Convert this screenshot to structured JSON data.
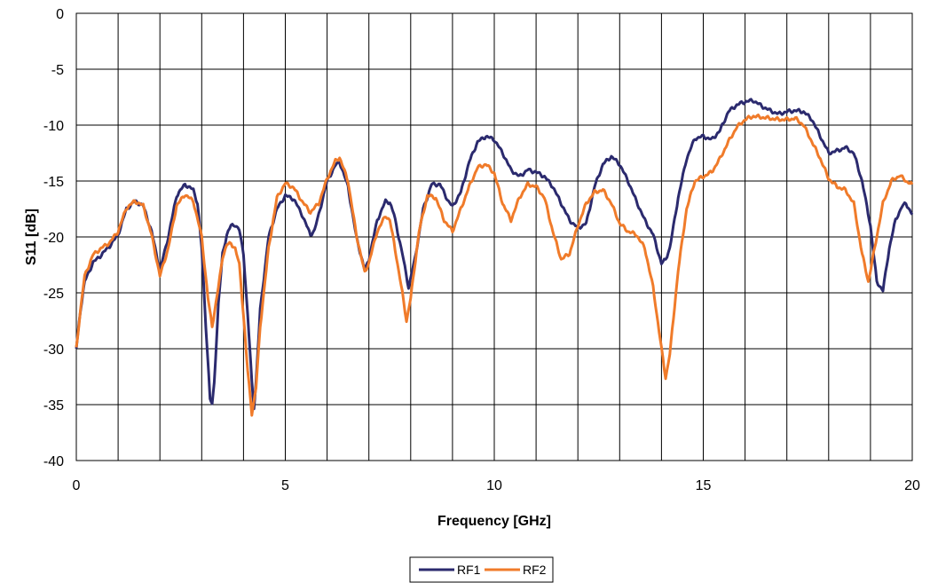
{
  "chart_data": {
    "type": "line",
    "title": "",
    "xlabel": "Frequency [GHz]",
    "ylabel": "S11 [dB]",
    "xlim": [
      0,
      20
    ],
    "ylim": [
      -40,
      0
    ],
    "x_ticks": [
      0,
      5,
      10,
      15,
      20
    ],
    "x_tick_labels": [
      "0",
      "5",
      "10",
      "15",
      "20"
    ],
    "y_ticks": [
      0,
      -5,
      -10,
      -15,
      -20,
      -25,
      -30,
      -35,
      -40
    ],
    "y_tick_labels": [
      "0",
      "-5",
      "-10",
      "-15",
      "-20",
      "-25",
      "-30",
      "-35",
      "-40"
    ],
    "x_minor_gridlines": [
      1,
      2,
      3,
      4,
      6,
      7,
      8,
      9,
      11,
      12,
      13,
      14,
      16,
      17,
      18,
      19
    ],
    "grid": true,
    "legend_position": "bottom-center",
    "series": [
      {
        "name": "RF1",
        "color": "#2b2a6e",
        "points": [
          [
            0.0,
            -30.0
          ],
          [
            0.1,
            -26.5
          ],
          [
            0.2,
            -24.0
          ],
          [
            0.4,
            -22.3
          ],
          [
            0.6,
            -21.6
          ],
          [
            0.8,
            -20.8
          ],
          [
            1.0,
            -19.8
          ],
          [
            1.2,
            -17.5
          ],
          [
            1.4,
            -16.8
          ],
          [
            1.6,
            -17.2
          ],
          [
            1.8,
            -19.5
          ],
          [
            2.0,
            -23.0
          ],
          [
            2.2,
            -20.0
          ],
          [
            2.4,
            -16.3
          ],
          [
            2.6,
            -15.3
          ],
          [
            2.8,
            -15.8
          ],
          [
            2.9,
            -17.0
          ],
          [
            3.0,
            -21.0
          ],
          [
            3.1,
            -28.0
          ],
          [
            3.2,
            -34.5
          ],
          [
            3.25,
            -35.0
          ],
          [
            3.3,
            -33.0
          ],
          [
            3.4,
            -26.0
          ],
          [
            3.5,
            -21.5
          ],
          [
            3.6,
            -19.8
          ],
          [
            3.7,
            -19.0
          ],
          [
            3.8,
            -18.9
          ],
          [
            3.9,
            -19.4
          ],
          [
            4.0,
            -21.5
          ],
          [
            4.1,
            -27.0
          ],
          [
            4.2,
            -33.0
          ],
          [
            4.25,
            -35.2
          ],
          [
            4.3,
            -33.0
          ],
          [
            4.4,
            -26.5
          ],
          [
            4.6,
            -20.0
          ],
          [
            4.8,
            -17.5
          ],
          [
            5.0,
            -16.3
          ],
          [
            5.2,
            -16.6
          ],
          [
            5.4,
            -18.0
          ],
          [
            5.6,
            -19.8
          ],
          [
            5.7,
            -19.4
          ],
          [
            5.8,
            -18.0
          ],
          [
            6.0,
            -15.0
          ],
          [
            6.2,
            -13.6
          ],
          [
            6.3,
            -13.3
          ],
          [
            6.5,
            -15.5
          ],
          [
            6.7,
            -20.0
          ],
          [
            6.9,
            -23.0
          ],
          [
            7.0,
            -22.0
          ],
          [
            7.2,
            -18.5
          ],
          [
            7.4,
            -16.8
          ],
          [
            7.5,
            -16.9
          ],
          [
            7.6,
            -18.0
          ],
          [
            7.8,
            -21.5
          ],
          [
            7.95,
            -24.5
          ],
          [
            8.1,
            -22.0
          ],
          [
            8.3,
            -17.5
          ],
          [
            8.5,
            -15.3
          ],
          [
            8.7,
            -15.3
          ],
          [
            8.9,
            -16.8
          ],
          [
            9.0,
            -17.3
          ],
          [
            9.2,
            -16.0
          ],
          [
            9.4,
            -13.3
          ],
          [
            9.6,
            -11.5
          ],
          [
            9.8,
            -11.0
          ],
          [
            10.0,
            -11.3
          ],
          [
            10.2,
            -12.5
          ],
          [
            10.4,
            -14.0
          ],
          [
            10.6,
            -14.6
          ],
          [
            10.8,
            -14.0
          ],
          [
            11.0,
            -14.2
          ],
          [
            11.2,
            -14.6
          ],
          [
            11.4,
            -15.5
          ],
          [
            11.6,
            -17.0
          ],
          [
            11.8,
            -18.5
          ],
          [
            12.0,
            -19.2
          ],
          [
            12.2,
            -18.8
          ],
          [
            12.4,
            -15.5
          ],
          [
            12.6,
            -13.5
          ],
          [
            12.8,
            -12.8
          ],
          [
            13.0,
            -13.5
          ],
          [
            13.2,
            -15.0
          ],
          [
            13.4,
            -16.8
          ],
          [
            13.6,
            -18.5
          ],
          [
            13.8,
            -19.8
          ],
          [
            14.0,
            -22.4
          ],
          [
            14.1,
            -22.0
          ],
          [
            14.2,
            -21.0
          ],
          [
            14.4,
            -16.5
          ],
          [
            14.6,
            -13.0
          ],
          [
            14.8,
            -11.2
          ],
          [
            15.0,
            -11.0
          ],
          [
            15.2,
            -11.3
          ],
          [
            15.4,
            -10.5
          ],
          [
            15.6,
            -8.8
          ],
          [
            15.8,
            -8.2
          ],
          [
            16.0,
            -7.9
          ],
          [
            16.2,
            -7.8
          ],
          [
            16.4,
            -8.3
          ],
          [
            16.6,
            -8.7
          ],
          [
            16.8,
            -9.0
          ],
          [
            17.0,
            -8.8
          ],
          [
            17.2,
            -8.7
          ],
          [
            17.4,
            -8.8
          ],
          [
            17.6,
            -9.5
          ],
          [
            17.8,
            -11.0
          ],
          [
            18.0,
            -12.5
          ],
          [
            18.2,
            -12.3
          ],
          [
            18.4,
            -12.0
          ],
          [
            18.6,
            -12.5
          ],
          [
            18.8,
            -15.0
          ],
          [
            19.0,
            -19.0
          ],
          [
            19.15,
            -24.0
          ],
          [
            19.3,
            -24.8
          ],
          [
            19.45,
            -21.0
          ],
          [
            19.6,
            -18.5
          ],
          [
            19.75,
            -17.3
          ],
          [
            19.85,
            -17.0
          ],
          [
            20.0,
            -18.0
          ]
        ]
      },
      {
        "name": "RF2",
        "color": "#f07b2a",
        "points": [
          [
            0.0,
            -30.0
          ],
          [
            0.1,
            -26.5
          ],
          [
            0.2,
            -23.5
          ],
          [
            0.4,
            -21.6
          ],
          [
            0.6,
            -21.0
          ],
          [
            0.8,
            -20.5
          ],
          [
            1.0,
            -19.5
          ],
          [
            1.2,
            -17.4
          ],
          [
            1.4,
            -16.8
          ],
          [
            1.6,
            -17.2
          ],
          [
            1.8,
            -19.8
          ],
          [
            2.0,
            -23.5
          ],
          [
            2.2,
            -21.0
          ],
          [
            2.4,
            -17.2
          ],
          [
            2.6,
            -16.2
          ],
          [
            2.8,
            -16.8
          ],
          [
            3.0,
            -20.0
          ],
          [
            3.15,
            -25.5
          ],
          [
            3.25,
            -28.0
          ],
          [
            3.4,
            -24.5
          ],
          [
            3.5,
            -21.8
          ],
          [
            3.6,
            -20.7
          ],
          [
            3.7,
            -20.6
          ],
          [
            3.8,
            -21.0
          ],
          [
            3.9,
            -22.5
          ],
          [
            4.0,
            -27.0
          ],
          [
            4.1,
            -32.0
          ],
          [
            4.2,
            -35.8
          ],
          [
            4.3,
            -33.5
          ],
          [
            4.4,
            -28.0
          ],
          [
            4.6,
            -21.0
          ],
          [
            4.8,
            -16.5
          ],
          [
            5.0,
            -15.2
          ],
          [
            5.2,
            -15.6
          ],
          [
            5.4,
            -16.8
          ],
          [
            5.6,
            -17.8
          ],
          [
            5.8,
            -17.0
          ],
          [
            6.0,
            -14.8
          ],
          [
            6.2,
            -13.2
          ],
          [
            6.3,
            -12.9
          ],
          [
            6.5,
            -15.0
          ],
          [
            6.7,
            -19.8
          ],
          [
            6.9,
            -23.2
          ],
          [
            7.0,
            -22.3
          ],
          [
            7.2,
            -19.5
          ],
          [
            7.4,
            -18.1
          ],
          [
            7.5,
            -18.5
          ],
          [
            7.6,
            -20.5
          ],
          [
            7.8,
            -25.0
          ],
          [
            7.9,
            -27.5
          ],
          [
            8.0,
            -25.5
          ],
          [
            8.2,
            -19.5
          ],
          [
            8.4,
            -16.3
          ],
          [
            8.6,
            -16.5
          ],
          [
            8.8,
            -18.5
          ],
          [
            9.0,
            -19.5
          ],
          [
            9.2,
            -17.5
          ],
          [
            9.4,
            -15.5
          ],
          [
            9.6,
            -13.8
          ],
          [
            9.8,
            -13.5
          ],
          [
            10.0,
            -14.3
          ],
          [
            10.2,
            -17.0
          ],
          [
            10.4,
            -18.5
          ],
          [
            10.6,
            -16.5
          ],
          [
            10.8,
            -15.3
          ],
          [
            11.0,
            -15.5
          ],
          [
            11.2,
            -16.5
          ],
          [
            11.4,
            -19.5
          ],
          [
            11.6,
            -22.0
          ],
          [
            11.8,
            -21.5
          ],
          [
            12.0,
            -19.0
          ],
          [
            12.2,
            -17.0
          ],
          [
            12.4,
            -16.0
          ],
          [
            12.6,
            -15.8
          ],
          [
            12.8,
            -17.0
          ],
          [
            13.0,
            -18.8
          ],
          [
            13.2,
            -19.5
          ],
          [
            13.4,
            -19.8
          ],
          [
            13.6,
            -21.0
          ],
          [
            13.8,
            -24.5
          ],
          [
            14.0,
            -30.0
          ],
          [
            14.1,
            -32.6
          ],
          [
            14.2,
            -30.5
          ],
          [
            14.4,
            -23.0
          ],
          [
            14.6,
            -17.5
          ],
          [
            14.8,
            -15.0
          ],
          [
            15.0,
            -14.6
          ],
          [
            15.2,
            -14.2
          ],
          [
            15.4,
            -13.0
          ],
          [
            15.6,
            -11.5
          ],
          [
            15.8,
            -10.2
          ],
          [
            16.0,
            -9.5
          ],
          [
            16.2,
            -9.2
          ],
          [
            16.4,
            -9.3
          ],
          [
            16.6,
            -9.4
          ],
          [
            16.8,
            -9.5
          ],
          [
            17.0,
            -9.5
          ],
          [
            17.2,
            -9.4
          ],
          [
            17.4,
            -10.0
          ],
          [
            17.6,
            -11.5
          ],
          [
            17.8,
            -13.0
          ],
          [
            18.0,
            -14.8
          ],
          [
            18.2,
            -15.5
          ],
          [
            18.4,
            -15.8
          ],
          [
            18.6,
            -17.0
          ],
          [
            18.8,
            -21.5
          ],
          [
            18.95,
            -24.0
          ],
          [
            19.1,
            -21.0
          ],
          [
            19.3,
            -17.0
          ],
          [
            19.5,
            -15.0
          ],
          [
            19.7,
            -14.5
          ],
          [
            19.85,
            -15.0
          ],
          [
            20.0,
            -15.3
          ]
        ]
      }
    ]
  }
}
